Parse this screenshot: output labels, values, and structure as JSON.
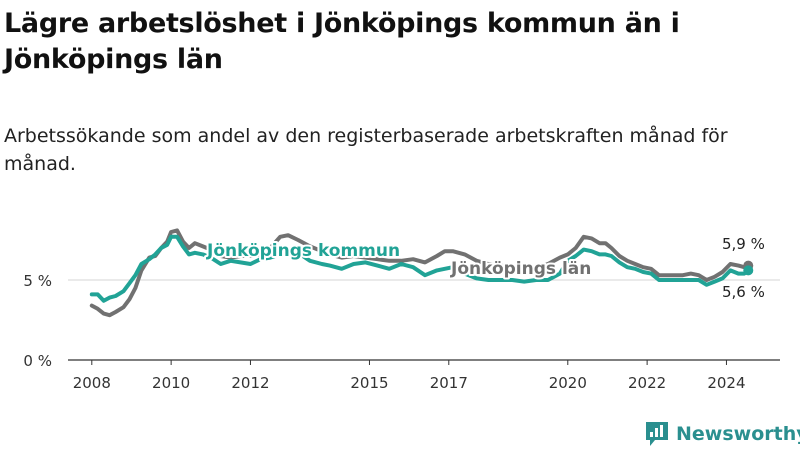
{
  "title": "Lägre arbetslöshet i Jönköpings kommun än i Jönköpings län",
  "subtitle": "Arbetssökande som andel av den registerbaserade arbetskraften månad för månad.",
  "brand": {
    "name": "Newsworthy",
    "icon": "newsworthy-logo-icon"
  },
  "chart_data": {
    "type": "line",
    "title": "",
    "xlabel": "",
    "ylabel": "",
    "x_ticks": [
      "2008",
      "2010",
      "2012",
      "2015",
      "2017",
      "2020",
      "2022",
      "2024"
    ],
    "y_ticks": [
      "0 %",
      "5 %"
    ],
    "ylim": [
      0,
      10
    ],
    "reference_line": 5.0,
    "grid": false,
    "series": [
      {
        "name": "Jönköpings län",
        "color": "#717171",
        "end_label": "5,9 %",
        "points": [
          [
            2008.0,
            3.4
          ],
          [
            2008.15,
            3.2
          ],
          [
            2008.3,
            2.9
          ],
          [
            2008.45,
            2.8
          ],
          [
            2008.6,
            3.0
          ],
          [
            2008.8,
            3.3
          ],
          [
            2008.95,
            3.8
          ],
          [
            2009.1,
            4.5
          ],
          [
            2009.25,
            5.6
          ],
          [
            2009.45,
            6.4
          ],
          [
            2009.6,
            6.5
          ],
          [
            2009.75,
            7.0
          ],
          [
            2009.9,
            7.4
          ],
          [
            2010.0,
            8.0
          ],
          [
            2010.15,
            8.1
          ],
          [
            2010.3,
            7.4
          ],
          [
            2010.45,
            7.0
          ],
          [
            2010.6,
            7.3
          ],
          [
            2010.8,
            7.1
          ],
          [
            2011.0,
            6.9
          ],
          [
            2011.25,
            6.5
          ],
          [
            2011.5,
            6.4
          ],
          [
            2011.75,
            6.5
          ],
          [
            2012.0,
            6.5
          ],
          [
            2012.25,
            6.6
          ],
          [
            2012.5,
            7.0
          ],
          [
            2012.75,
            7.7
          ],
          [
            2012.95,
            7.8
          ],
          [
            2013.2,
            7.5
          ],
          [
            2013.5,
            7.1
          ],
          [
            2013.8,
            6.8
          ],
          [
            2014.0,
            6.6
          ],
          [
            2014.3,
            6.4
          ],
          [
            2014.6,
            6.5
          ],
          [
            2014.9,
            6.4
          ],
          [
            2015.2,
            6.3
          ],
          [
            2015.5,
            6.2
          ],
          [
            2015.8,
            6.2
          ],
          [
            2016.1,
            6.3
          ],
          [
            2016.4,
            6.1
          ],
          [
            2016.7,
            6.5
          ],
          [
            2016.9,
            6.8
          ],
          [
            2017.1,
            6.8
          ],
          [
            2017.4,
            6.6
          ],
          [
            2017.7,
            6.2
          ],
          [
            2018.0,
            6.0
          ],
          [
            2018.3,
            5.9
          ],
          [
            2018.6,
            5.8
          ],
          [
            2018.9,
            5.7
          ],
          [
            2019.2,
            5.8
          ],
          [
            2019.5,
            6.0
          ],
          [
            2019.8,
            6.4
          ],
          [
            2020.0,
            6.6
          ],
          [
            2020.2,
            7.0
          ],
          [
            2020.4,
            7.7
          ],
          [
            2020.6,
            7.6
          ],
          [
            2020.8,
            7.3
          ],
          [
            2020.95,
            7.3
          ],
          [
            2021.1,
            7.0
          ],
          [
            2021.3,
            6.5
          ],
          [
            2021.5,
            6.2
          ],
          [
            2021.7,
            6.0
          ],
          [
            2021.9,
            5.8
          ],
          [
            2022.1,
            5.7
          ],
          [
            2022.3,
            5.3
          ],
          [
            2022.6,
            5.3
          ],
          [
            2022.9,
            5.3
          ],
          [
            2023.1,
            5.4
          ],
          [
            2023.3,
            5.3
          ],
          [
            2023.5,
            5.0
          ],
          [
            2023.7,
            5.2
          ],
          [
            2023.9,
            5.5
          ],
          [
            2024.1,
            6.0
          ],
          [
            2024.3,
            5.9
          ],
          [
            2024.45,
            5.8
          ],
          [
            2024.55,
            5.9
          ]
        ]
      },
      {
        "name": "Jönköpings kommun",
        "color": "#21a396",
        "end_label": "5,6 %",
        "points": [
          [
            2008.0,
            4.1
          ],
          [
            2008.15,
            4.1
          ],
          [
            2008.3,
            3.7
          ],
          [
            2008.45,
            3.9
          ],
          [
            2008.6,
            4.0
          ],
          [
            2008.8,
            4.3
          ],
          [
            2008.95,
            4.8
          ],
          [
            2009.1,
            5.3
          ],
          [
            2009.25,
            6.0
          ],
          [
            2009.45,
            6.3
          ],
          [
            2009.6,
            6.6
          ],
          [
            2009.75,
            7.0
          ],
          [
            2009.9,
            7.2
          ],
          [
            2010.0,
            7.7
          ],
          [
            2010.15,
            7.7
          ],
          [
            2010.3,
            7.1
          ],
          [
            2010.45,
            6.6
          ],
          [
            2010.6,
            6.7
          ],
          [
            2010.8,
            6.6
          ],
          [
            2011.0,
            6.4
          ],
          [
            2011.25,
            6.0
          ],
          [
            2011.5,
            6.2
          ],
          [
            2011.75,
            6.1
          ],
          [
            2012.0,
            6.0
          ],
          [
            2012.25,
            6.3
          ],
          [
            2012.5,
            6.4
          ],
          [
            2012.75,
            6.6
          ],
          [
            2012.95,
            6.9
          ],
          [
            2013.2,
            6.7
          ],
          [
            2013.5,
            6.2
          ],
          [
            2013.8,
            6.0
          ],
          [
            2014.0,
            5.9
          ],
          [
            2014.3,
            5.7
          ],
          [
            2014.6,
            6.0
          ],
          [
            2014.9,
            6.1
          ],
          [
            2015.2,
            5.9
          ],
          [
            2015.5,
            5.7
          ],
          [
            2015.8,
            6.0
          ],
          [
            2016.1,
            5.8
          ],
          [
            2016.4,
            5.3
          ],
          [
            2016.7,
            5.6
          ],
          [
            2016.9,
            5.7
          ],
          [
            2017.1,
            5.8
          ],
          [
            2017.4,
            5.4
          ],
          [
            2017.7,
            5.1
          ],
          [
            2018.0,
            5.0
          ],
          [
            2018.3,
            5.0
          ],
          [
            2018.6,
            5.0
          ],
          [
            2018.9,
            4.9
          ],
          [
            2019.2,
            5.0
          ],
          [
            2019.5,
            5.0
          ],
          [
            2019.8,
            5.4
          ],
          [
            2020.0,
            6.2
          ],
          [
            2020.2,
            6.5
          ],
          [
            2020.4,
            6.9
          ],
          [
            2020.6,
            6.8
          ],
          [
            2020.8,
            6.6
          ],
          [
            2020.95,
            6.6
          ],
          [
            2021.1,
            6.5
          ],
          [
            2021.3,
            6.1
          ],
          [
            2021.5,
            5.8
          ],
          [
            2021.7,
            5.7
          ],
          [
            2021.9,
            5.5
          ],
          [
            2022.1,
            5.4
          ],
          [
            2022.3,
            5.0
          ],
          [
            2022.6,
            5.0
          ],
          [
            2022.9,
            5.0
          ],
          [
            2023.1,
            5.0
          ],
          [
            2023.3,
            5.0
          ],
          [
            2023.5,
            4.7
          ],
          [
            2023.7,
            4.9
          ],
          [
            2023.9,
            5.1
          ],
          [
            2024.1,
            5.6
          ],
          [
            2024.3,
            5.4
          ],
          [
            2024.45,
            5.4
          ],
          [
            2024.55,
            5.6
          ]
        ]
      }
    ]
  }
}
